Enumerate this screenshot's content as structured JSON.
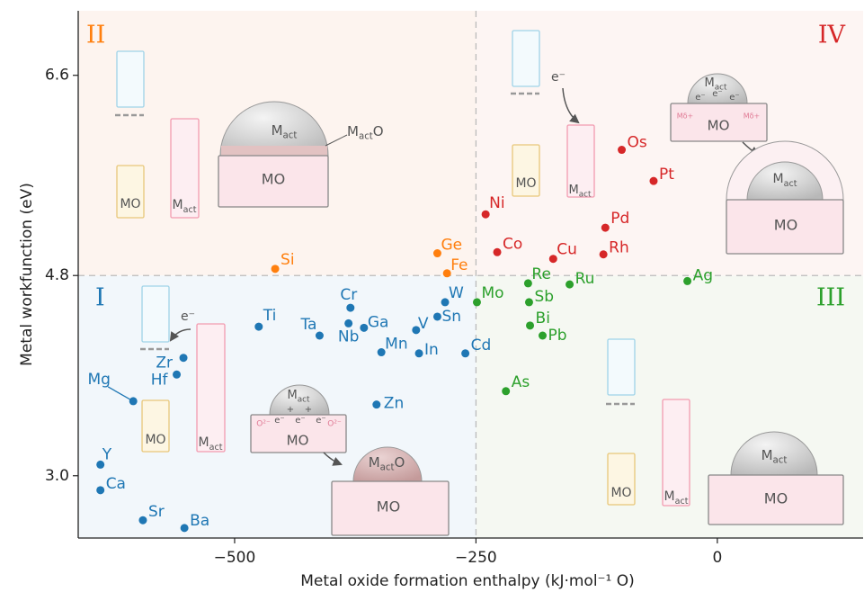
{
  "chart_data": {
    "type": "scatter",
    "x_label": "Metal oxide formation enthalpy (kJ·mol⁻¹ O)",
    "y_label": "Metal workfunction (eV)",
    "xlim": [
      -662,
      151
    ],
    "ylim": [
      2.44,
      7.18
    ],
    "xticks": [
      {
        "value": -500,
        "label": "−500"
      },
      {
        "value": -250,
        "label": "−250"
      },
      0
    ],
    "yticks": [
      {
        "value": 3.0,
        "label": "3.0"
      },
      4.8,
      6.6
    ],
    "dividers": {
      "x": -250,
      "y": 4.8
    },
    "quadrants": [
      {
        "label": "I",
        "color": "#1f77b4"
      },
      {
        "label": "II",
        "color": "#ff7f0e"
      },
      {
        "label": "III",
        "color": "#2ca02c"
      },
      {
        "label": "IV",
        "color": "#d62728"
      }
    ],
    "series": [
      {
        "color": "#1f77b4",
        "labels": [
          "Ti",
          "Cr",
          "Ta",
          "Nb",
          "Ga",
          "Mn",
          "V",
          "In",
          "W",
          "Sn",
          "Cd",
          "Zr",
          "Hf",
          "Mg",
          "Zn",
          "Y",
          "Ca",
          "Sr",
          "Ba"
        ],
        "x": [
          -475,
          -380,
          -412,
          -382,
          -366,
          -348,
          -312,
          -309,
          -282,
          -290,
          -261,
          -553,
          -560,
          -605,
          -353,
          -639,
          -639,
          -595,
          -552
        ],
        "values": [
          4.34,
          4.51,
          4.26,
          4.37,
          4.33,
          4.11,
          4.31,
          4.1,
          4.56,
          4.43,
          4.1,
          4.06,
          3.91,
          3.67,
          3.64,
          3.1,
          2.87,
          2.6,
          2.53
        ]
      },
      {
        "color": "#ff7f0e",
        "labels": [
          "Si",
          "Ge",
          "Fe"
        ],
        "x": [
          -458,
          -290,
          -280
        ],
        "values": [
          4.86,
          5.0,
          4.82
        ]
      },
      {
        "color": "#d62728",
        "labels": [
          "Ni",
          "Co",
          "Cu",
          "Rh",
          "Pd",
          "Pt",
          "Os"
        ],
        "x": [
          -240,
          -228,
          -170,
          -118,
          -116,
          -66,
          -99
        ],
        "values": [
          5.35,
          5.01,
          4.95,
          4.99,
          5.23,
          5.65,
          5.93
        ]
      },
      {
        "color": "#2ca02c",
        "labels": [
          "Re",
          "Ru",
          "Ag",
          "Mo",
          "Sb",
          "Bi",
          "Pb",
          "As"
        ],
        "x": [
          -196,
          -153,
          -31,
          -249,
          -195,
          -194,
          -181,
          -219
        ],
        "values": [
          4.73,
          4.72,
          4.75,
          4.56,
          4.56,
          4.35,
          4.26,
          3.76
        ]
      }
    ]
  },
  "schematic": {
    "mo": "MO",
    "m": "M",
    "act": "act",
    "o": "O",
    "electron": "e⁻",
    "plus": "+",
    "oxygen_ion": "O²⁻",
    "metal_ion": "Mδ+"
  }
}
